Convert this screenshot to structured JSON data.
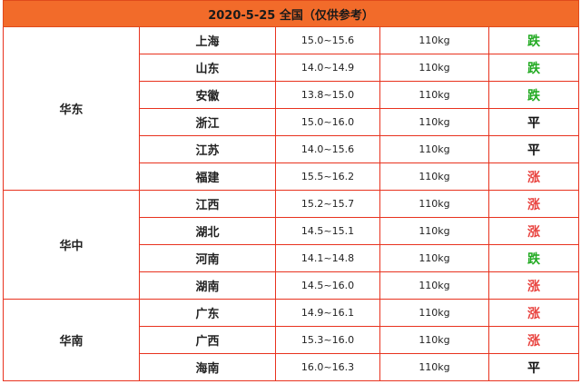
{
  "header": {
    "title": "2020-5-25 全国（仅供参考）"
  },
  "colors": {
    "down": "#22aa22",
    "flat": "#111111",
    "up": "#e8423e",
    "border": "#e8321e",
    "header_bg": "#f26b2a"
  },
  "groups": [
    {
      "region": "华东",
      "rows": [
        {
          "province": "上海",
          "range": "15.0~15.6",
          "weight": "110kg",
          "trend": "跌",
          "dir": "down"
        },
        {
          "province": "山东",
          "range": "14.0~14.9",
          "weight": "110kg",
          "trend": "跌",
          "dir": "down"
        },
        {
          "province": "安徽",
          "range": "13.8~15.0",
          "weight": "110kg",
          "trend": "跌",
          "dir": "down"
        },
        {
          "province": "浙江",
          "range": "15.0~16.0",
          "weight": "110kg",
          "trend": "平",
          "dir": "flat"
        },
        {
          "province": "江苏",
          "range": "14.0~15.6",
          "weight": "110kg",
          "trend": "平",
          "dir": "flat"
        },
        {
          "province": "福建",
          "range": "15.5~16.2",
          "weight": "110kg",
          "trend": "涨",
          "dir": "up"
        }
      ]
    },
    {
      "region": "华中",
      "rows": [
        {
          "province": "江西",
          "range": "15.2~15.7",
          "weight": "110kg",
          "trend": "涨",
          "dir": "up"
        },
        {
          "province": "湖北",
          "range": "14.5~15.1",
          "weight": "110kg",
          "trend": "涨",
          "dir": "up"
        },
        {
          "province": "河南",
          "range": "14.1~14.8",
          "weight": "110kg",
          "trend": "跌",
          "dir": "down"
        },
        {
          "province": "湖南",
          "range": "14.5~16.0",
          "weight": "110kg",
          "trend": "涨",
          "dir": "up"
        }
      ]
    },
    {
      "region": "华南",
      "rows": [
        {
          "province": "广东",
          "range": "14.9~16.1",
          "weight": "110kg",
          "trend": "涨",
          "dir": "up"
        },
        {
          "province": "广西",
          "range": "15.3~16.0",
          "weight": "110kg",
          "trend": "涨",
          "dir": "up"
        },
        {
          "province": "海南",
          "range": "16.0~16.3",
          "weight": "110kg",
          "trend": "平",
          "dir": "flat"
        }
      ]
    }
  ]
}
